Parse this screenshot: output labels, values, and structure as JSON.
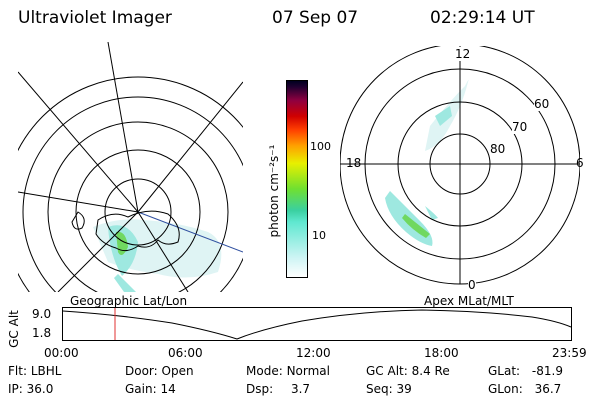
{
  "header": {
    "title": "Ultraviolet Imager",
    "date": "07 Sep 07",
    "time": "02:29:14 UT"
  },
  "colorbar": {
    "unit_label": "photon cm⁻²s⁻¹",
    "ticks": [
      "100",
      "10"
    ]
  },
  "polar_plot": {
    "labels": {
      "top": "12",
      "bottom": "0",
      "left": "18",
      "right": "6"
    },
    "lat_labels": [
      "60",
      "70",
      "80"
    ]
  },
  "panels": {
    "left_caption": "Geographic Lat/Lon",
    "right_caption": "Apex MLat/MLT"
  },
  "altitude_plot": {
    "ylabel": "GC Alt",
    "y_ticks": [
      "9.0",
      "1.8"
    ],
    "x_ticks": [
      "00:00",
      "06:00",
      "12:00",
      "18:00",
      "23:59"
    ],
    "current_marker_time": "02:29"
  },
  "info": {
    "row1": [
      {
        "label": "Flt:",
        "value": "LBHL"
      },
      {
        "label": "Door:",
        "value": "Open"
      },
      {
        "label": "Mode:",
        "value": "Normal"
      },
      {
        "label": "GC Alt:",
        "value": "8.4 Re"
      },
      {
        "label": "GLat:",
        "value": "-81.9"
      }
    ],
    "row2": [
      {
        "label": "IP:",
        "value": "36.0"
      },
      {
        "label": "Gain:",
        "value": "14"
      },
      {
        "label": "Dsp:",
        "value": "3.7"
      },
      {
        "label": "Seq:",
        "value": "39"
      },
      {
        "label": "GLon:",
        "value": "36.7"
      }
    ]
  },
  "colors": {
    "colorbar_stops": [
      "#ffffff",
      "#a0f0f0",
      "#30e0c0",
      "#60e020",
      "#f0f000",
      "#ff9000",
      "#e00000",
      "#a00040",
      "#400040",
      "#000030"
    ],
    "marker": "#e03030"
  }
}
